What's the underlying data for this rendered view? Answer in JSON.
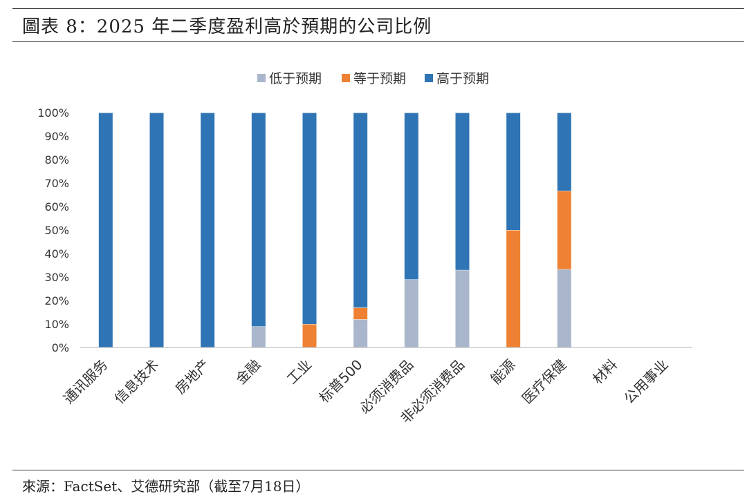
{
  "header": {
    "title": "圖表 8：2025 年二季度盈利高於預期的公司比例"
  },
  "footer": {
    "source": "來源：FactSet、艾德研究部（截至7月18日）"
  },
  "colors": {
    "below": "#A9B6CB",
    "equal": "#EE8133",
    "above": "#2F75B5",
    "axis": "#BFBFBF"
  },
  "chart_data": {
    "type": "bar",
    "stacked": true,
    "title": "",
    "xlabel": "",
    "ylabel": "",
    "ylim": [
      0,
      100
    ],
    "y_ticks": [
      "0%",
      "10%",
      "20%",
      "30%",
      "40%",
      "50%",
      "60%",
      "70%",
      "80%",
      "90%",
      "100%"
    ],
    "legend_position": "top-center",
    "categories": [
      "通讯服务",
      "信息技术",
      "房地产",
      "金融",
      "工业",
      "标普500",
      "必须消费品",
      "非必须消费品",
      "能源",
      "医疗保健",
      "材料",
      "公用事业"
    ],
    "series": [
      {
        "name": "低于预期",
        "color": "#A9B6CB",
        "values": [
          0,
          0,
          0,
          9,
          0,
          12,
          29,
          33,
          0,
          33.3,
          0,
          0
        ]
      },
      {
        "name": "等于预期",
        "color": "#EE8133",
        "values": [
          0,
          0,
          0,
          0,
          10,
          5,
          0,
          0,
          50,
          33.4,
          0,
          0
        ]
      },
      {
        "name": "高于预期",
        "color": "#2F75B5",
        "values": [
          100,
          100,
          100,
          91,
          90,
          83,
          71,
          67,
          50,
          33.3,
          0,
          0
        ]
      }
    ]
  }
}
